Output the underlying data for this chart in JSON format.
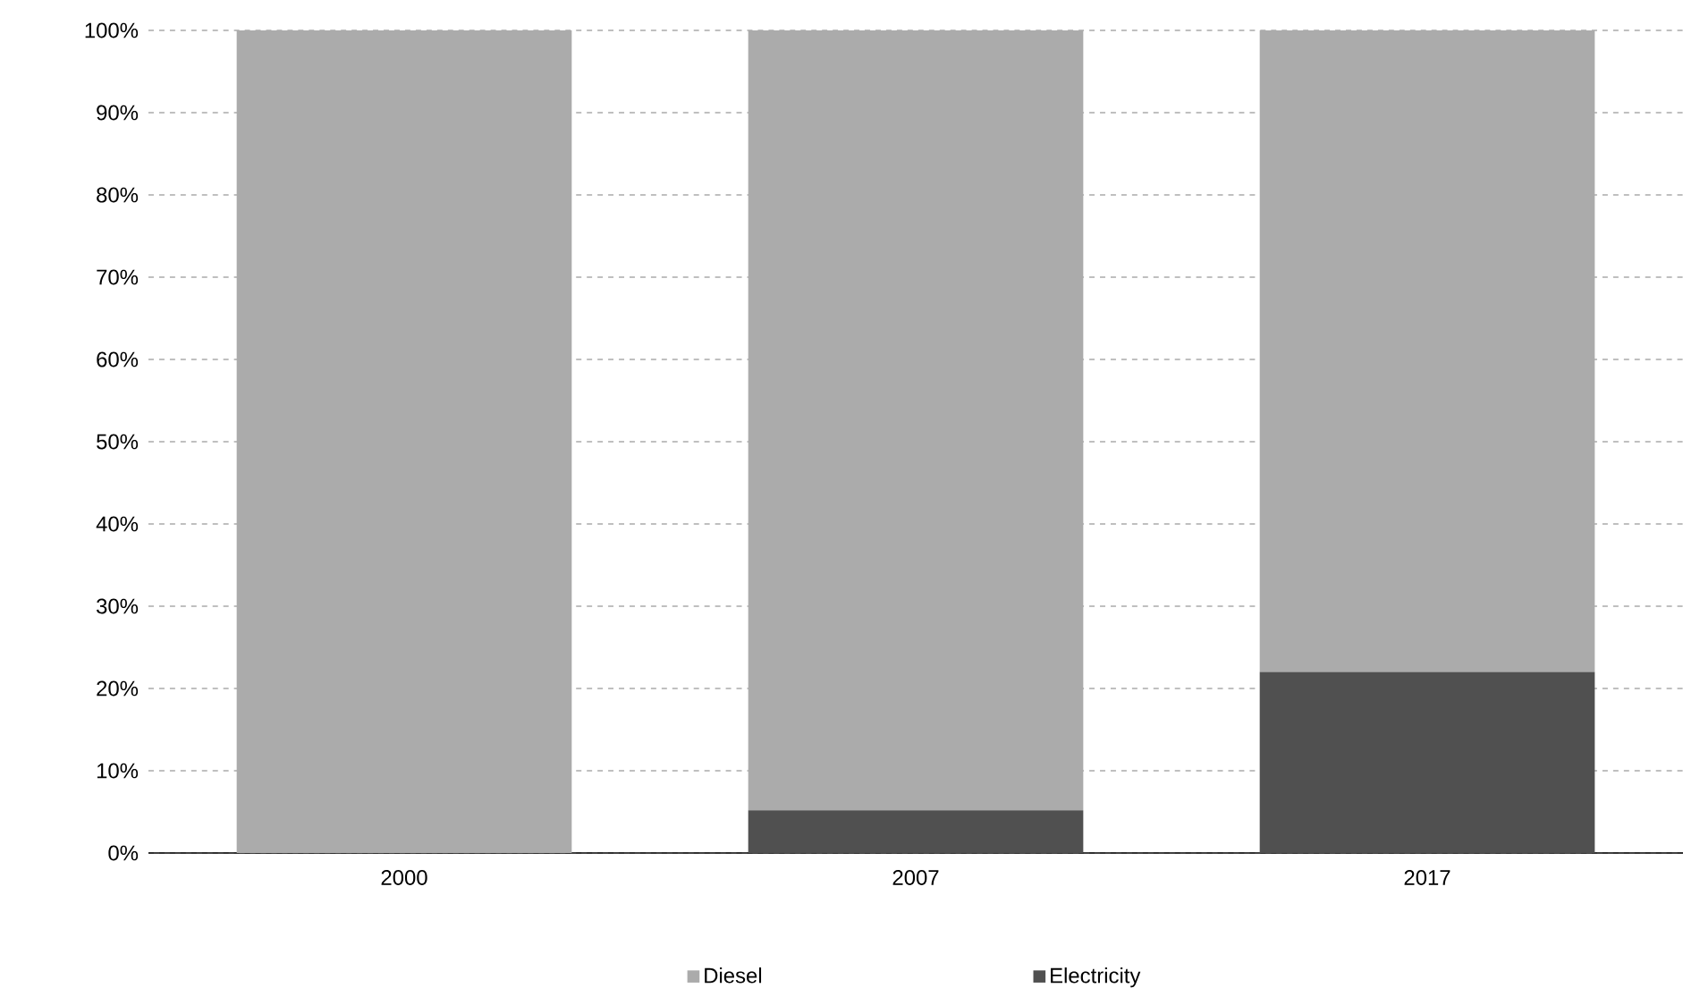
{
  "chart_data": {
    "type": "bar",
    "stacked": true,
    "categories": [
      "2000",
      "2007",
      "2017"
    ],
    "series": [
      {
        "name": "Electricity",
        "color": "#505050",
        "values": [
          0,
          5.2,
          22
        ]
      },
      {
        "name": "Diesel",
        "color": "#ababab",
        "values": [
          100,
          94.8,
          78
        ]
      }
    ],
    "ylim": [
      0,
      100
    ],
    "yticks": [
      {
        "value": 0,
        "label": "0%"
      },
      {
        "value": 10,
        "label": "10%"
      },
      {
        "value": 20,
        "label": "20%"
      },
      {
        "value": 30,
        "label": "30%"
      },
      {
        "value": 40,
        "label": "40%"
      },
      {
        "value": 50,
        "label": "50%"
      },
      {
        "value": 60,
        "label": "60%"
      },
      {
        "value": 70,
        "label": "70%"
      },
      {
        "value": 80,
        "label": "80%"
      },
      {
        "value": 90,
        "label": "90%"
      },
      {
        "value": 100,
        "label": "100%"
      }
    ],
    "grid": "y",
    "legend": "bottom"
  }
}
